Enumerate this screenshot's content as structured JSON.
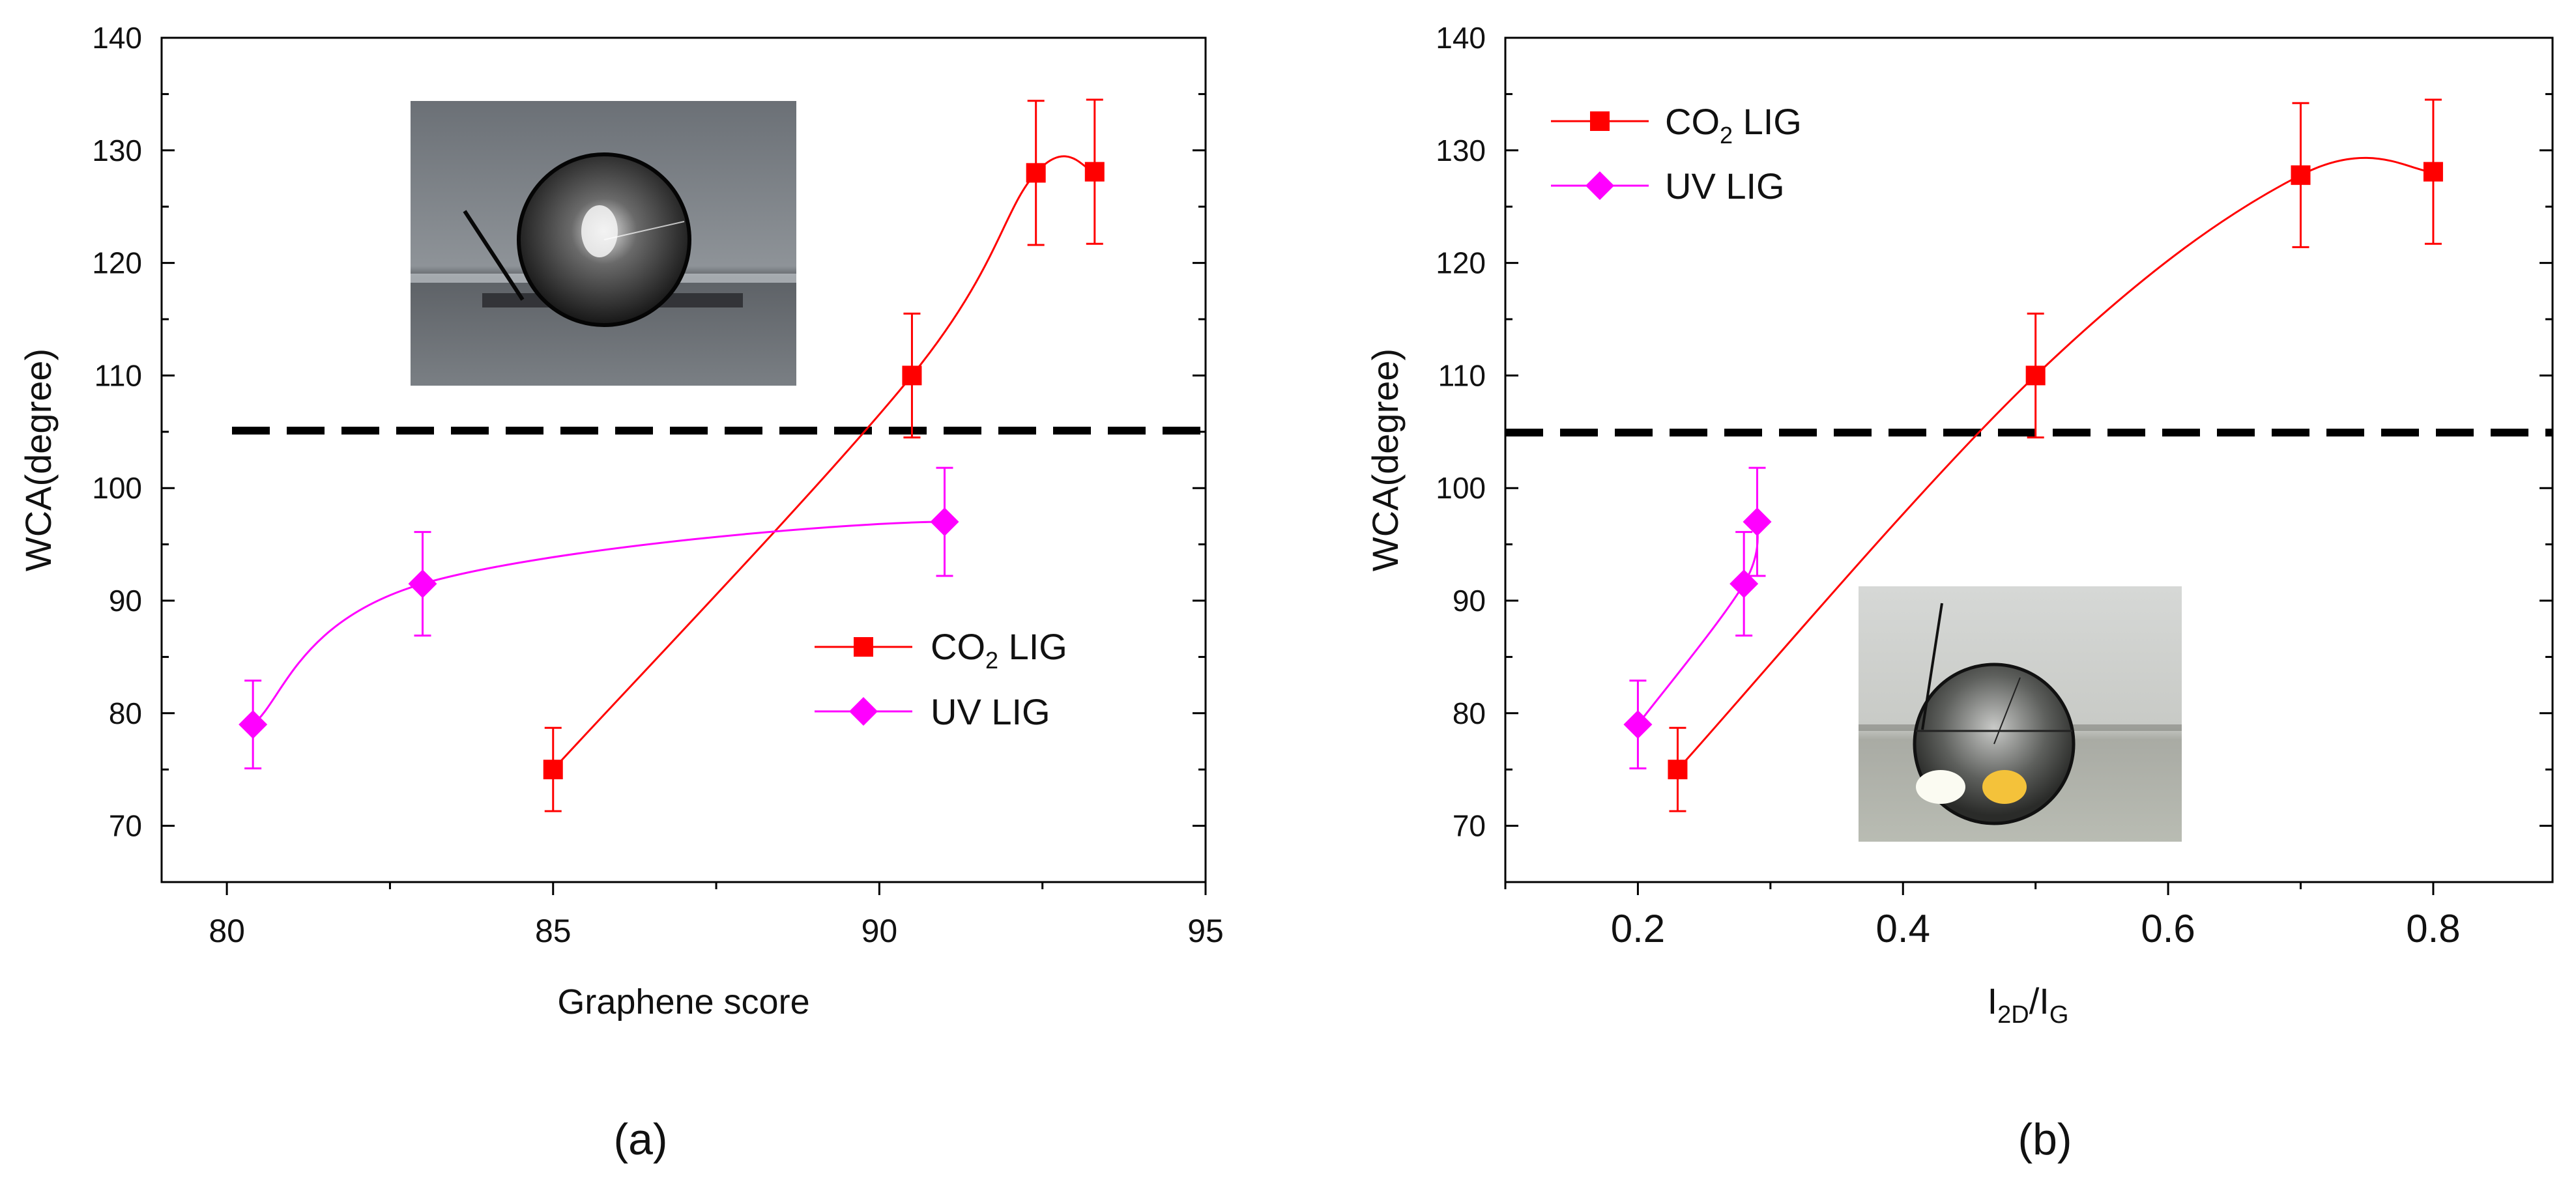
{
  "chart_data": [
    {
      "type": "scatter",
      "panel_label": "(a)",
      "xlabel": "Graphene score",
      "ylabel": "WCA(degree)",
      "xlim": [
        79,
        95
      ],
      "ylim": [
        65,
        140
      ],
      "x_ticks": [
        80,
        85,
        90,
        95
      ],
      "y_ticks": [
        70,
        80,
        90,
        100,
        110,
        120,
        130,
        140
      ],
      "reference_line": {
        "y": 105,
        "style": "dashed",
        "color": "#000000"
      },
      "legend": {
        "placement": "middle-right"
      },
      "inset_image": {
        "placement": "top-left",
        "name": "water-droplet-photo-gray"
      },
      "series": [
        {
          "name": "CO2 LIG",
          "legend_main": "CO",
          "legend_sub": "2",
          "legend_tail": " LIG",
          "color": "#ff0000",
          "marker": "square",
          "points": [
            {
              "x": 85.0,
              "y": 75.0,
              "err": 3.7
            },
            {
              "x": 90.5,
              "y": 110.0,
              "err": 5.5
            },
            {
              "x": 92.4,
              "y": 128.0,
              "err": 6.4
            },
            {
              "x": 93.3,
              "y": 128.1,
              "err": 6.4
            }
          ]
        },
        {
          "name": "UV LIG",
          "legend_main": "UV LIG",
          "legend_sub": "",
          "legend_tail": "",
          "color": "#ff00ff",
          "marker": "diamond",
          "points": [
            {
              "x": 80.4,
              "y": 79.0,
              "err": 3.9
            },
            {
              "x": 83.0,
              "y": 91.5,
              "err": 4.6
            },
            {
              "x": 91.0,
              "y": 97.0,
              "err": 4.8
            }
          ]
        }
      ]
    },
    {
      "type": "scatter",
      "panel_label": "(b)",
      "xlabel_main": "I",
      "xlabel_sub1": "2D",
      "xlabel_mid": "/I",
      "xlabel_sub2": "G",
      "ylabel": "WCA(degree)",
      "xlim": [
        0.1,
        0.89
      ],
      "ylim": [
        65,
        140
      ],
      "x_ticks": [
        0.2,
        0.4,
        0.6,
        0.8
      ],
      "x_tick_labels": [
        "0.2",
        "0.4",
        "0.6",
        "0.8"
      ],
      "y_ticks": [
        70,
        80,
        90,
        100,
        110,
        120,
        130,
        140
      ],
      "reference_line": {
        "y": 105,
        "style": "dashed",
        "color": "#000000"
      },
      "legend": {
        "placement": "top-left"
      },
      "inset_image": {
        "placement": "bottom-center",
        "name": "water-droplet-photo-light"
      },
      "series": [
        {
          "name": "CO2 LIG",
          "legend_main": "CO",
          "legend_sub": "2",
          "legend_tail": " LIG",
          "color": "#ff0000",
          "marker": "square",
          "points": [
            {
              "x": 0.23,
              "y": 75.0,
              "err": 3.7
            },
            {
              "x": 0.5,
              "y": 110.0,
              "err": 5.5
            },
            {
              "x": 0.7,
              "y": 127.8,
              "err": 6.4
            },
            {
              "x": 0.8,
              "y": 128.1,
              "err": 6.4
            }
          ]
        },
        {
          "name": "UV LIG",
          "legend_main": "UV LIG",
          "legend_sub": "",
          "legend_tail": "",
          "color": "#ff00ff",
          "marker": "diamond",
          "points": [
            {
              "x": 0.2,
              "y": 79.0,
              "err": 3.9
            },
            {
              "x": 0.28,
              "y": 91.5,
              "err": 4.6
            },
            {
              "x": 0.29,
              "y": 97.0,
              "err": 4.8
            }
          ]
        }
      ]
    }
  ]
}
